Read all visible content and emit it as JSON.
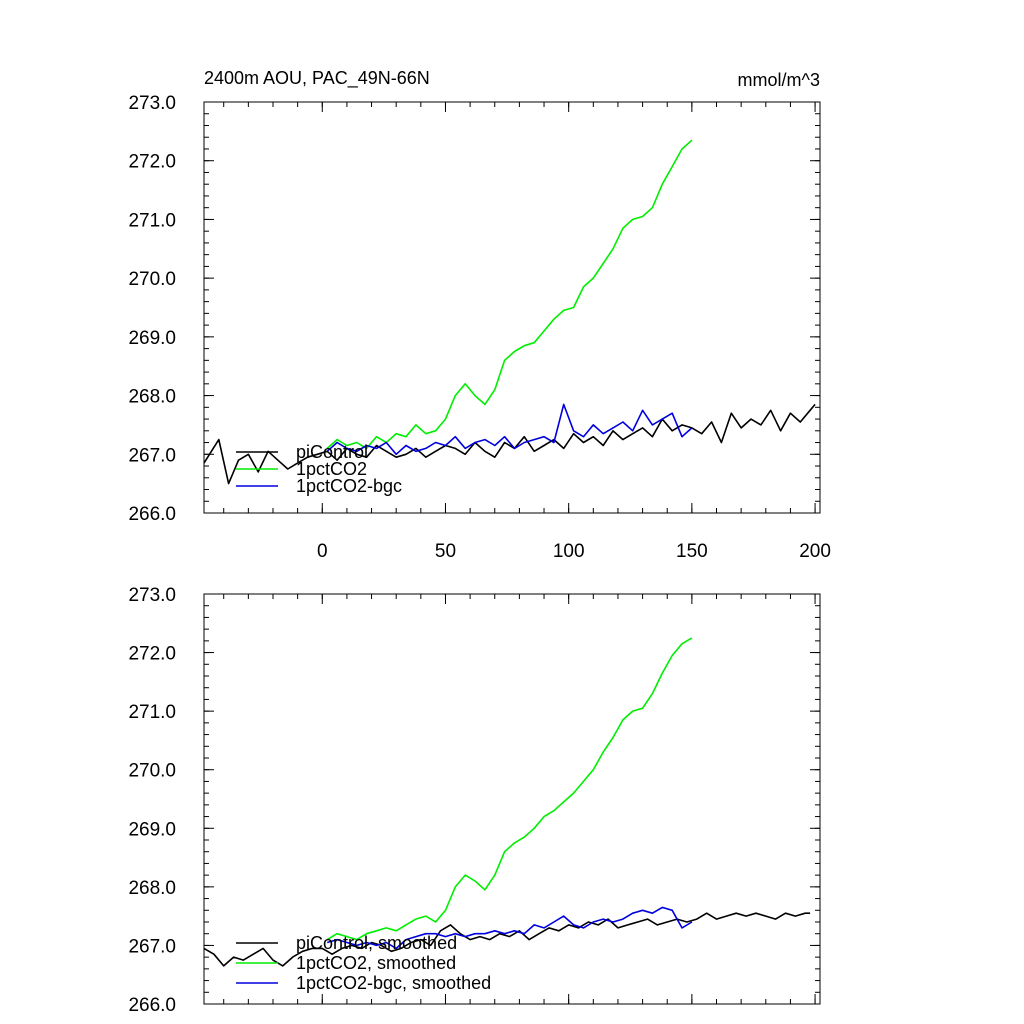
{
  "colors": {
    "piControl": "#000000",
    "1pctCO2": "#00ee00",
    "1pctCO2-bgc": "#0000dd",
    "axes": "#000000",
    "background": "#ffffff"
  },
  "header": {
    "title": "2400m AOU, PAC_49N-66N",
    "units": "mmol/m^3"
  },
  "chart_data": [
    {
      "type": "line",
      "title": "2400m AOU, PAC_49N-66N",
      "units_label": "mmol/m^3",
      "xlim": [
        -48,
        202
      ],
      "ylim": [
        266.0,
        273.0
      ],
      "x_tick_labels": [
        "0",
        "50",
        "100",
        "150",
        "200"
      ],
      "x_ticks": [
        0,
        50,
        100,
        150,
        200
      ],
      "y_tick_labels": [
        "266.0",
        "267.0",
        "268.0",
        "269.0",
        "270.0",
        "271.0",
        "272.0",
        "273.0"
      ],
      "y_ticks": [
        266,
        267,
        268,
        269,
        270,
        271,
        272,
        273
      ],
      "grid": false,
      "legend_position": "bottom-left",
      "series": [
        {
          "name": "piControl",
          "color": "#000000",
          "x": [
            -48,
            -42,
            -38,
            -34,
            -30,
            -26,
            -22,
            -18,
            -14,
            -10,
            -6,
            -2,
            2,
            6,
            10,
            14,
            18,
            22,
            26,
            30,
            34,
            38,
            42,
            46,
            50,
            54,
            58,
            62,
            66,
            70,
            74,
            78,
            82,
            86,
            90,
            94,
            98,
            102,
            106,
            110,
            114,
            118,
            122,
            126,
            130,
            134,
            138,
            142,
            146,
            150,
            154,
            158,
            162,
            166,
            170,
            174,
            178,
            182,
            186,
            190,
            194,
            198,
            200
          ],
          "y": [
            266.85,
            267.25,
            266.5,
            266.9,
            267.0,
            266.7,
            267.05,
            266.9,
            266.75,
            266.85,
            266.95,
            267.0,
            267.05,
            266.9,
            267.1,
            267.0,
            266.95,
            267.15,
            267.05,
            266.95,
            267.0,
            267.1,
            266.95,
            267.05,
            267.15,
            267.1,
            267.0,
            267.2,
            267.05,
            266.95,
            267.2,
            267.1,
            267.3,
            267.05,
            267.15,
            267.25,
            267.1,
            267.35,
            267.2,
            267.3,
            267.15,
            267.4,
            267.25,
            267.35,
            267.45,
            267.3,
            267.6,
            267.4,
            267.5,
            267.45,
            267.35,
            267.55,
            267.2,
            267.7,
            267.45,
            267.6,
            267.5,
            267.75,
            267.4,
            267.7,
            267.55,
            267.75,
            267.85
          ]
        },
        {
          "name": "1pctCO2",
          "color": "#00ee00",
          "x": [
            2,
            6,
            10,
            14,
            18,
            22,
            26,
            30,
            34,
            38,
            42,
            46,
            50,
            54,
            58,
            62,
            66,
            70,
            74,
            78,
            82,
            86,
            90,
            94,
            98,
            102,
            106,
            110,
            114,
            118,
            122,
            126,
            130,
            134,
            138,
            142,
            146,
            150
          ],
          "y": [
            267.1,
            267.25,
            267.15,
            267.2,
            267.1,
            267.3,
            267.2,
            267.35,
            267.3,
            267.5,
            267.35,
            267.4,
            267.6,
            268.0,
            268.2,
            268.0,
            267.85,
            268.1,
            268.6,
            268.75,
            268.85,
            268.9,
            269.1,
            269.3,
            269.45,
            269.5,
            269.85,
            270.0,
            270.25,
            270.5,
            270.85,
            271.0,
            271.05,
            271.2,
            271.6,
            271.9,
            272.2,
            272.35
          ]
        },
        {
          "name": "1pctCO2-bgc",
          "color": "#0000dd",
          "x": [
            2,
            6,
            10,
            14,
            18,
            22,
            26,
            30,
            34,
            38,
            42,
            46,
            50,
            54,
            58,
            62,
            66,
            70,
            74,
            78,
            82,
            86,
            90,
            94,
            98,
            102,
            106,
            110,
            114,
            118,
            122,
            126,
            130,
            134,
            138,
            142,
            146,
            150
          ],
          "y": [
            267.05,
            267.2,
            267.1,
            267.05,
            267.15,
            267.1,
            267.2,
            267.0,
            267.15,
            267.05,
            267.1,
            267.2,
            267.15,
            267.3,
            267.1,
            267.2,
            267.25,
            267.15,
            267.3,
            267.1,
            267.2,
            267.25,
            267.3,
            267.2,
            267.85,
            267.4,
            267.3,
            267.5,
            267.35,
            267.45,
            267.55,
            267.4,
            267.75,
            267.5,
            267.6,
            267.7,
            267.3,
            267.45
          ]
        }
      ]
    },
    {
      "type": "line",
      "xlim": [
        -48,
        202
      ],
      "ylim": [
        266.0,
        273.0
      ],
      "x_ticks": [
        0,
        50,
        100,
        150,
        200
      ],
      "y_tick_labels": [
        "266.0",
        "267.0",
        "268.0",
        "269.0",
        "270.0",
        "271.0",
        "272.0",
        "273.0"
      ],
      "y_ticks": [
        266,
        267,
        268,
        269,
        270,
        271,
        272,
        273
      ],
      "grid": false,
      "legend_position": "bottom-left",
      "series": [
        {
          "name": "piControl, smoothed",
          "color": "#000000",
          "x": [
            -48,
            -44,
            -40,
            -36,
            -32,
            -28,
            -24,
            -20,
            -16,
            -12,
            -8,
            -4,
            0,
            4,
            8,
            12,
            16,
            20,
            24,
            28,
            32,
            36,
            40,
            44,
            48,
            52,
            56,
            60,
            64,
            68,
            72,
            76,
            80,
            84,
            88,
            92,
            96,
            100,
            104,
            108,
            112,
            116,
            120,
            124,
            128,
            132,
            136,
            140,
            144,
            148,
            152,
            156,
            160,
            164,
            168,
            172,
            176,
            180,
            184,
            188,
            192,
            196,
            198
          ],
          "y": [
            266.95,
            266.85,
            266.65,
            266.8,
            266.75,
            266.85,
            266.95,
            266.75,
            266.65,
            266.8,
            266.9,
            266.95,
            266.95,
            266.85,
            266.95,
            267.0,
            266.95,
            267.05,
            267.0,
            266.9,
            266.95,
            267.05,
            267.1,
            267.0,
            267.25,
            267.35,
            267.2,
            267.1,
            267.15,
            267.1,
            267.2,
            267.15,
            267.25,
            267.1,
            267.2,
            267.3,
            267.25,
            267.35,
            267.3,
            267.4,
            267.35,
            267.45,
            267.3,
            267.35,
            267.4,
            267.45,
            267.35,
            267.4,
            267.45,
            267.4,
            267.45,
            267.55,
            267.45,
            267.5,
            267.55,
            267.5,
            267.55,
            267.5,
            267.45,
            267.55,
            267.5,
            267.55,
            267.55
          ]
        },
        {
          "name": "1pctCO2, smoothed",
          "color": "#00ee00",
          "x": [
            2,
            6,
            10,
            14,
            18,
            22,
            26,
            30,
            34,
            38,
            42,
            46,
            50,
            54,
            58,
            62,
            66,
            70,
            74,
            78,
            82,
            86,
            90,
            94,
            98,
            102,
            106,
            110,
            114,
            118,
            122,
            126,
            130,
            134,
            138,
            142,
            146,
            150
          ],
          "y": [
            267.1,
            267.2,
            267.15,
            267.1,
            267.2,
            267.25,
            267.3,
            267.25,
            267.35,
            267.45,
            267.5,
            267.4,
            267.6,
            268.0,
            268.2,
            268.1,
            267.95,
            268.2,
            268.6,
            268.75,
            268.85,
            269.0,
            269.2,
            269.3,
            269.45,
            269.6,
            269.8,
            270.0,
            270.3,
            270.55,
            270.85,
            271.0,
            271.05,
            271.3,
            271.65,
            271.95,
            272.15,
            272.25
          ]
        },
        {
          "name": "1pctCO2-bgc, smoothed",
          "color": "#0000dd",
          "x": [
            2,
            6,
            10,
            14,
            18,
            22,
            26,
            30,
            34,
            38,
            42,
            46,
            50,
            54,
            58,
            62,
            66,
            70,
            74,
            78,
            82,
            86,
            90,
            94,
            98,
            102,
            106,
            110,
            114,
            118,
            122,
            126,
            130,
            134,
            138,
            142,
            146,
            150
          ],
          "y": [
            267.05,
            267.1,
            267.05,
            267.0,
            267.05,
            267.0,
            267.05,
            266.95,
            267.1,
            267.15,
            267.2,
            267.2,
            267.15,
            267.2,
            267.15,
            267.2,
            267.2,
            267.25,
            267.2,
            267.25,
            267.2,
            267.35,
            267.3,
            267.4,
            267.5,
            267.35,
            267.3,
            267.4,
            267.45,
            267.4,
            267.45,
            267.55,
            267.6,
            267.55,
            267.65,
            267.6,
            267.3,
            267.4
          ]
        }
      ]
    }
  ]
}
